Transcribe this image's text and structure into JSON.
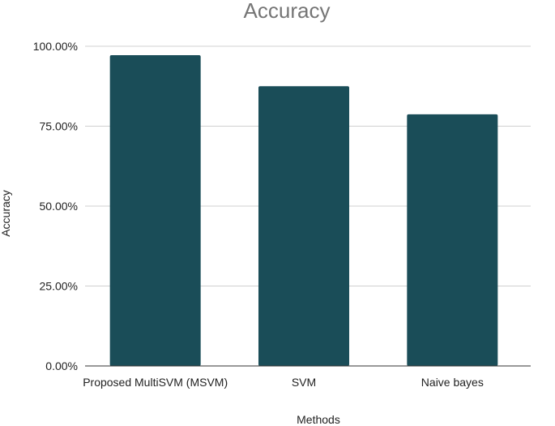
{
  "chart_data": {
    "type": "bar",
    "title": "Accuracy",
    "xlabel": "Methods",
    "ylabel": "Accuracy",
    "categories": [
      "Proposed MultiSVM (MSVM)",
      "SVM",
      "Naive bayes"
    ],
    "series": [
      {
        "values": [
          97.2,
          87.5,
          78.7
        ]
      }
    ],
    "ylim": [
      0,
      100
    ],
    "yticks": [
      0,
      25,
      50,
      75,
      100
    ],
    "ytick_labels": [
      "0.00%",
      "25.00%",
      "50.00%",
      "75.00%",
      "100.00%"
    ],
    "grid": true,
    "legend": "none",
    "colors": {
      "bar": "#1a4d58",
      "title": "#757575",
      "grid": "#d0d0d0"
    }
  }
}
